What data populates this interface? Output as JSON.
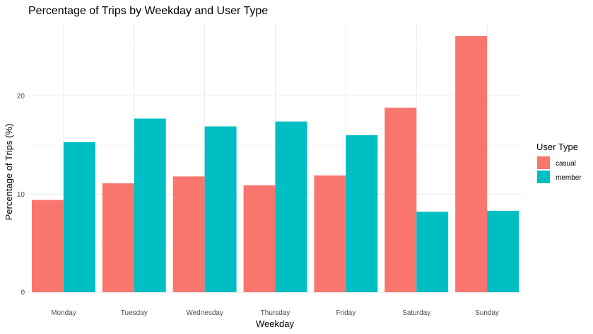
{
  "chart_data": {
    "type": "bar",
    "title": "Percentage of Trips by Weekday and User Type",
    "xlabel": "Weekday",
    "ylabel": "Percentage of Trips (%)",
    "categories": [
      "Monday",
      "Tuesday",
      "Wednesday",
      "Thursday",
      "Friday",
      "Saturday",
      "Sunday"
    ],
    "series": [
      {
        "name": "casual",
        "color": "#F8766D",
        "values": [
          9.4,
          11.1,
          11.8,
          10.9,
          11.9,
          18.8,
          26.1
        ]
      },
      {
        "name": "member",
        "color": "#00BFC4",
        "values": [
          15.3,
          17.7,
          16.9,
          17.4,
          16.0,
          8.2,
          8.3
        ]
      }
    ],
    "ylim": [
      0,
      27.4
    ],
    "yticks": [
      0,
      10,
      20
    ],
    "grid": true,
    "legend": {
      "title": "User Type",
      "position": "right"
    }
  }
}
